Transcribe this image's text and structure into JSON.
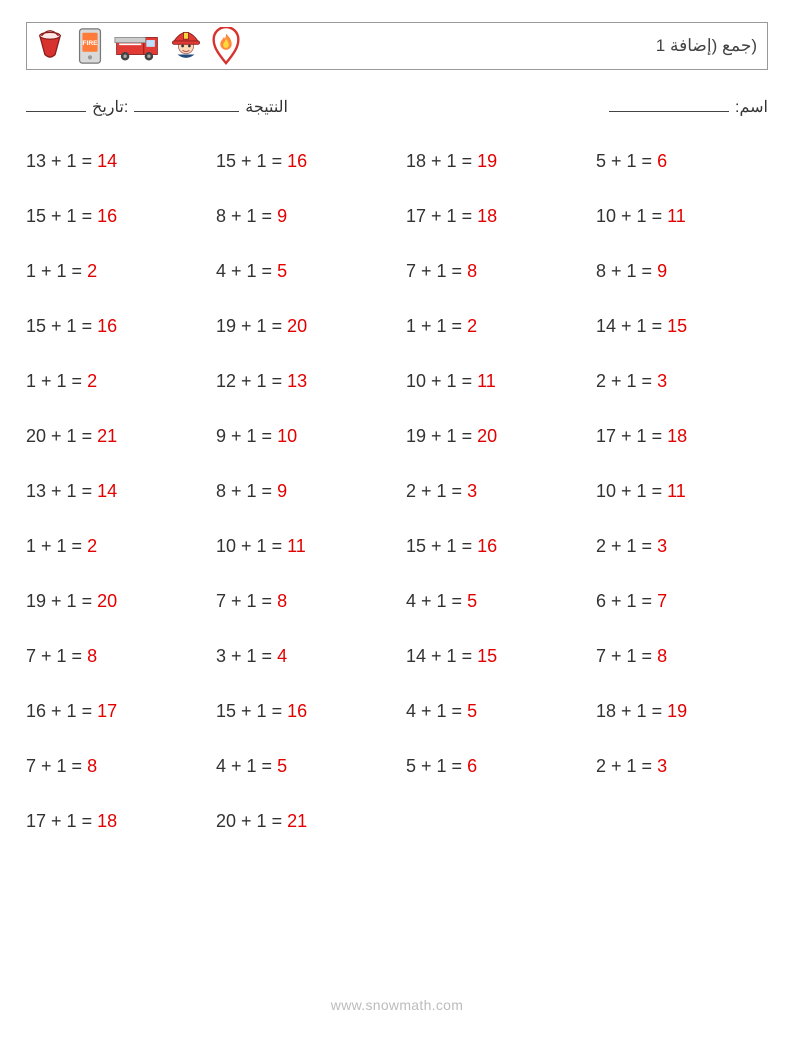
{
  "header": {
    "title_text": "(جمع (إضافة 1",
    "icons": [
      "bucket-icon",
      "fire-phone-icon",
      "fire-truck-icon",
      "firefighter-icon",
      "fire-pin-icon"
    ]
  },
  "meta": {
    "name_label": "اسم:",
    "score_label": "النتيجة",
    "date_label": ":تاريخ",
    "blank_width_name": 120,
    "blank_width_score": 105,
    "blank_width_date": 60
  },
  "style": {
    "answer_color": "#e30000",
    "text_color": "#333333",
    "background": "#ffffff",
    "font_size_problem": 18,
    "columns": 4,
    "row_gap": 34
  },
  "problems": [
    [
      {
        "a": 13,
        "b": 1,
        "ans": 14
      },
      {
        "a": 15,
        "b": 1,
        "ans": 16
      },
      {
        "a": 18,
        "b": 1,
        "ans": 19
      },
      {
        "a": 5,
        "b": 1,
        "ans": 6
      }
    ],
    [
      {
        "a": 15,
        "b": 1,
        "ans": 16
      },
      {
        "a": 8,
        "b": 1,
        "ans": 9
      },
      {
        "a": 17,
        "b": 1,
        "ans": 18
      },
      {
        "a": 10,
        "b": 1,
        "ans": 11
      }
    ],
    [
      {
        "a": 1,
        "b": 1,
        "ans": 2
      },
      {
        "a": 4,
        "b": 1,
        "ans": 5
      },
      {
        "a": 7,
        "b": 1,
        "ans": 8
      },
      {
        "a": 8,
        "b": 1,
        "ans": 9
      }
    ],
    [
      {
        "a": 15,
        "b": 1,
        "ans": 16
      },
      {
        "a": 19,
        "b": 1,
        "ans": 20
      },
      {
        "a": 1,
        "b": 1,
        "ans": 2
      },
      {
        "a": 14,
        "b": 1,
        "ans": 15
      }
    ],
    [
      {
        "a": 1,
        "b": 1,
        "ans": 2
      },
      {
        "a": 12,
        "b": 1,
        "ans": 13
      },
      {
        "a": 10,
        "b": 1,
        "ans": 11
      },
      {
        "a": 2,
        "b": 1,
        "ans": 3
      }
    ],
    [
      {
        "a": 20,
        "b": 1,
        "ans": 21
      },
      {
        "a": 9,
        "b": 1,
        "ans": 10
      },
      {
        "a": 19,
        "b": 1,
        "ans": 20
      },
      {
        "a": 17,
        "b": 1,
        "ans": 18
      }
    ],
    [
      {
        "a": 13,
        "b": 1,
        "ans": 14
      },
      {
        "a": 8,
        "b": 1,
        "ans": 9
      },
      {
        "a": 2,
        "b": 1,
        "ans": 3
      },
      {
        "a": 10,
        "b": 1,
        "ans": 11
      }
    ],
    [
      {
        "a": 1,
        "b": 1,
        "ans": 2
      },
      {
        "a": 10,
        "b": 1,
        "ans": 11
      },
      {
        "a": 15,
        "b": 1,
        "ans": 16
      },
      {
        "a": 2,
        "b": 1,
        "ans": 3
      }
    ],
    [
      {
        "a": 19,
        "b": 1,
        "ans": 20
      },
      {
        "a": 7,
        "b": 1,
        "ans": 8
      },
      {
        "a": 4,
        "b": 1,
        "ans": 5
      },
      {
        "a": 6,
        "b": 1,
        "ans": 7
      }
    ],
    [
      {
        "a": 7,
        "b": 1,
        "ans": 8
      },
      {
        "a": 3,
        "b": 1,
        "ans": 4
      },
      {
        "a": 14,
        "b": 1,
        "ans": 15
      },
      {
        "a": 7,
        "b": 1,
        "ans": 8
      }
    ],
    [
      {
        "a": 16,
        "b": 1,
        "ans": 17
      },
      {
        "a": 15,
        "b": 1,
        "ans": 16
      },
      {
        "a": 4,
        "b": 1,
        "ans": 5
      },
      {
        "a": 18,
        "b": 1,
        "ans": 19
      }
    ],
    [
      {
        "a": 7,
        "b": 1,
        "ans": 8
      },
      {
        "a": 4,
        "b": 1,
        "ans": 5
      },
      {
        "a": 5,
        "b": 1,
        "ans": 6
      },
      {
        "a": 2,
        "b": 1,
        "ans": 3
      }
    ],
    [
      {
        "a": 17,
        "b": 1,
        "ans": 18
      },
      {
        "a": 20,
        "b": 1,
        "ans": 21
      }
    ]
  ],
  "footer": {
    "url": "www.snowmath.com"
  }
}
